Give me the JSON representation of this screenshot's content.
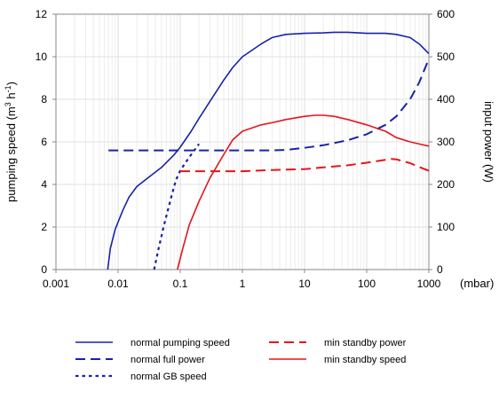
{
  "chart_data": {
    "type": "line",
    "x_scale": "log",
    "xlim": [
      0.001,
      1000
    ],
    "x_ticks": [
      "0.001",
      "0.01",
      "0.1",
      "1",
      "10",
      "100",
      "1000"
    ],
    "x_unit": "(mbar)",
    "y_left": {
      "label_main": "pumping speed (m",
      "label_sup1": "3",
      "label_mid": " h",
      "label_sup2": "-1",
      "label_end": ")",
      "ylim": [
        0,
        12
      ],
      "ticks": [
        "0",
        "2",
        "4",
        "6",
        "8",
        "10",
        "12"
      ]
    },
    "y_right": {
      "label": "input power (W)",
      "ylim": [
        0,
        600
      ],
      "ticks": [
        "0",
        "100",
        "200",
        "300",
        "400",
        "500",
        "600"
      ]
    },
    "grid": true,
    "legend_position": "bottom",
    "series": [
      {
        "name": "normal pumping speed",
        "axis": "left",
        "color": "#1a22a8",
        "style": "solid",
        "x": [
          0.0068,
          0.0075,
          0.009,
          0.012,
          0.015,
          0.02,
          0.03,
          0.05,
          0.08,
          0.1,
          0.15,
          0.2,
          0.3,
          0.5,
          0.7,
          1,
          2,
          3,
          5,
          10,
          20,
          30,
          50,
          100,
          200,
          300,
          500,
          700,
          1000
        ],
        "y": [
          0,
          1.0,
          1.9,
          2.8,
          3.4,
          3.9,
          4.3,
          4.8,
          5.4,
          5.75,
          6.5,
          7.1,
          7.9,
          8.9,
          9.5,
          10.0,
          10.6,
          10.9,
          11.05,
          11.1,
          11.12,
          11.15,
          11.15,
          11.1,
          11.1,
          11.05,
          10.9,
          10.6,
          10.15
        ]
      },
      {
        "name": "normal full power",
        "axis": "right",
        "color": "#1a22a8",
        "style": "dashed",
        "x": [
          0.007,
          0.01,
          0.1,
          1,
          3,
          5,
          10,
          20,
          50,
          100,
          200,
          300,
          500,
          700,
          1000
        ],
        "y": [
          280,
          280,
          280,
          280,
          280,
          281,
          286,
          292,
          304,
          318,
          340,
          360,
          400,
          440,
          495
        ]
      },
      {
        "name": "normal GB speed",
        "axis": "left",
        "color": "#1a22a8",
        "style": "dotted",
        "x": [
          0.038,
          0.045,
          0.055,
          0.07,
          0.085,
          0.1,
          0.12,
          0.15,
          0.2
        ],
        "y": [
          0,
          1.0,
          2.1,
          3.3,
          4.2,
          4.65,
          5.0,
          5.4,
          5.9
        ]
      },
      {
        "name": "min standby power",
        "axis": "right",
        "color": "#e8141c",
        "style": "dashed",
        "x": [
          0.1,
          0.3,
          1,
          3,
          10,
          20,
          50,
          100,
          200,
          250,
          300,
          500,
          700,
          1000
        ],
        "y": [
          231,
          231,
          231,
          234,
          236,
          240,
          245,
          251,
          258,
          260,
          259,
          250,
          241,
          232
        ]
      },
      {
        "name": "min standby speed",
        "axis": "left",
        "color": "#e8141c",
        "style": "solid",
        "x": [
          0.09,
          0.11,
          0.14,
          0.2,
          0.3,
          0.5,
          0.7,
          1,
          2,
          3,
          5,
          10,
          15,
          20,
          30,
          50,
          100,
          200,
          300,
          500,
          700,
          1000
        ],
        "y": [
          0,
          1.0,
          2.1,
          3.2,
          4.3,
          5.4,
          6.1,
          6.5,
          6.8,
          6.9,
          7.05,
          7.2,
          7.25,
          7.25,
          7.2,
          7.05,
          6.8,
          6.5,
          6.2,
          6.0,
          5.9,
          5.8
        ]
      }
    ],
    "legend_layout": [
      [
        "normal pumping speed",
        "min standby power"
      ],
      [
        "normal full power",
        "min standby speed"
      ],
      [
        "normal GB speed"
      ]
    ]
  }
}
